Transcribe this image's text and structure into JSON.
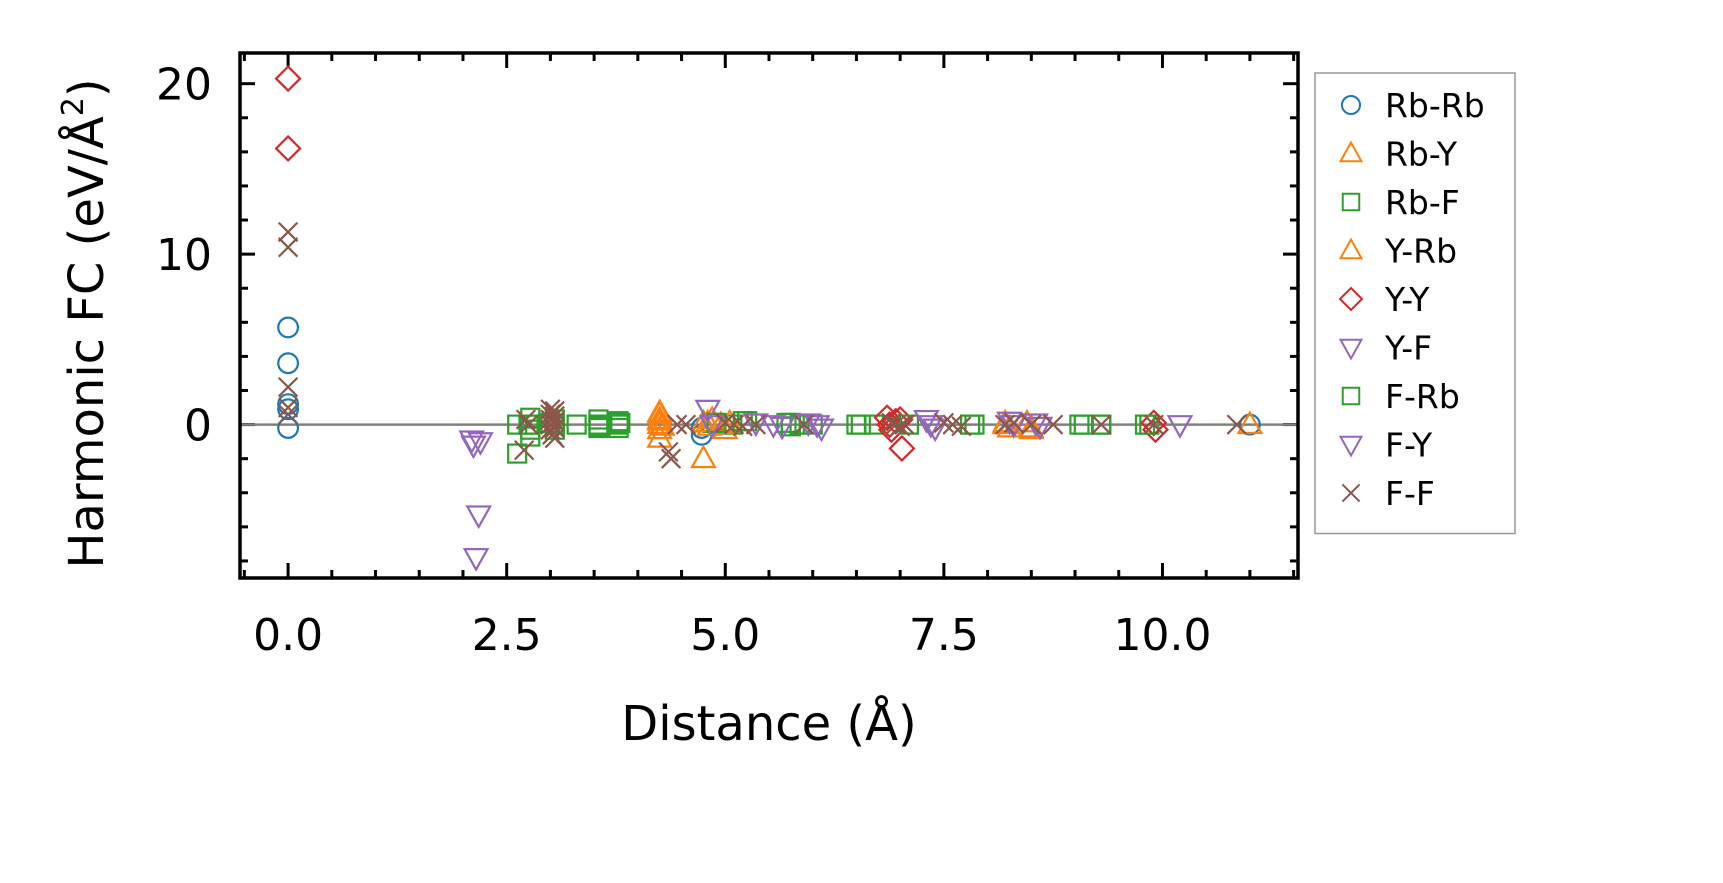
{
  "chart_data": {
    "type": "scatter",
    "xlabel": "Distance (Å)",
    "ylabel": "Harmonic FC (eV/Å²)",
    "ylabel_main": "Harmonic FC (eV/Å",
    "ylabel_sup": "2",
    "ylabel_end": ")",
    "xlim": [
      -0.55,
      11.55
    ],
    "ylim": [
      -9.0,
      21.8
    ],
    "x_ticks": [
      0.0,
      2.5,
      5.0,
      7.5,
      10.0
    ],
    "x_tick_labels": [
      "0.0",
      "2.5",
      "5.0",
      "7.5",
      "10.0"
    ],
    "y_ticks": [
      0,
      10,
      20
    ],
    "y_tick_labels": [
      "0",
      "10",
      "20"
    ],
    "zero_line": true,
    "legend_position": "outside-right",
    "series": [
      {
        "name": "Rb-Rb",
        "marker": "circle",
        "color": "#1f77b4",
        "x": [
          0,
          0,
          0,
          0,
          0,
          4.73,
          4.73,
          11.0
        ],
        "y": [
          5.7,
          3.6,
          1.2,
          0.9,
          -0.2,
          -0.6,
          -0.2,
          0.0
        ]
      },
      {
        "name": "Rb-Y",
        "marker": "triangle-up",
        "color": "#ff7f0e",
        "x": [
          4.25,
          4.25,
          4.25,
          4.25,
          4.25,
          4.75,
          4.75,
          8.2,
          8.5,
          11.0
        ],
        "y": [
          0.6,
          0.3,
          0.0,
          -0.3,
          -0.8,
          -2.0,
          0.1,
          0.0,
          -0.2,
          0.0
        ]
      },
      {
        "name": "Rb-F",
        "marker": "square",
        "color": "#2ca02c",
        "x": [
          2.62,
          2.62,
          2.77,
          2.77,
          2.77,
          2.77,
          3.05,
          3.05,
          3.05,
          3.55,
          3.55,
          3.55,
          3.78,
          3.78,
          3.78,
          4.85,
          5.08,
          5.25,
          5.75,
          5.75,
          5.85,
          6.5,
          6.7,
          7.8,
          9.05,
          9.3,
          9.85
        ],
        "y": [
          -1.7,
          0.0,
          0.4,
          0.0,
          -0.3,
          -0.7,
          0.3,
          0.0,
          -0.3,
          0.3,
          0.0,
          -0.2,
          0.2,
          0.0,
          -0.2,
          0.1,
          0.0,
          0.2,
          0.1,
          -0.1,
          0.0,
          0.0,
          0.0,
          0.0,
          0.0,
          0.0,
          0.0
        ]
      },
      {
        "name": "Y-Rb",
        "marker": "triangle-up",
        "color": "#ff7f0e",
        "x": [
          4.25,
          4.25,
          4.28,
          4.8,
          4.82,
          4.85,
          4.95,
          5.0,
          5.05,
          8.2,
          8.25,
          8.45,
          8.5
        ],
        "y": [
          0.7,
          0.2,
          -0.1,
          0.1,
          -0.1,
          0.3,
          0.0,
          -0.3,
          0.1,
          0.1,
          -0.2,
          0.1,
          -0.3
        ]
      },
      {
        "name": "Y-Y",
        "marker": "diamond",
        "color": "#d62728",
        "x": [
          0,
          0,
          6.85,
          6.88,
          6.9,
          6.95,
          7.0,
          7.02,
          9.9,
          9.92
        ],
        "y": [
          20.3,
          16.2,
          0.4,
          0.0,
          -0.3,
          0.2,
          0.3,
          -1.4,
          0.1,
          -0.3
        ]
      },
      {
        "name": "Y-F",
        "marker": "triangle-down",
        "color": "#9467bd",
        "x": [
          2.1,
          2.12,
          2.15,
          2.18,
          2.2
        ],
        "y": [
          -0.9,
          -1.2,
          -7.8,
          -5.3,
          -1.0
        ]
      },
      {
        "name": "F-Rb",
        "marker": "square",
        "color": "#2ca02c",
        "x": [
          2.75,
          3.0,
          3.3,
          3.55,
          3.8,
          4.9,
          5.2,
          5.7,
          6.0,
          6.55,
          7.1,
          7.85,
          9.1,
          9.3,
          9.8
        ],
        "y": [
          0.0,
          0.1,
          0.0,
          -0.1,
          0.1,
          0.1,
          0.2,
          0.1,
          0.0,
          0.0,
          0.0,
          0.0,
          0.0,
          0.0,
          0.0
        ]
      },
      {
        "name": "F-Y",
        "marker": "triangle-down",
        "color": "#9467bd",
        "x": [
          4.8,
          4.85,
          5.35,
          5.55,
          5.65,
          5.95,
          6.05,
          6.1,
          7.3,
          7.35,
          7.4,
          8.25,
          8.3,
          8.55,
          8.6,
          10.2
        ],
        "y": [
          0.9,
          0.0,
          0.1,
          0.0,
          -0.1,
          0.1,
          0.0,
          -0.2,
          0.3,
          0.0,
          -0.2,
          0.2,
          0.0,
          0.1,
          -0.1,
          0.0
        ]
      },
      {
        "name": "F-F",
        "marker": "x",
        "color": "#8c564b",
        "x": [
          0,
          0,
          0,
          0,
          0,
          2.7,
          2.72,
          2.75,
          3.0,
          3.0,
          3.0,
          3.0,
          3.0,
          3.02,
          3.05,
          3.05,
          3.05,
          3.05,
          3.05,
          4.35,
          4.38,
          4.45,
          4.55,
          5.0,
          5.1,
          5.2,
          5.35,
          5.9,
          6.9,
          6.95,
          7.0,
          7.05,
          7.5,
          7.6,
          7.7,
          8.2,
          8.3,
          8.5,
          8.75,
          9.3,
          9.9,
          10.85
        ],
        "y": [
          11.3,
          10.4,
          2.2,
          1.0,
          0.6,
          -1.5,
          0.3,
          0.0,
          0.9,
          0.6,
          0.3,
          0.0,
          -0.3,
          -0.6,
          0.8,
          0.5,
          0.2,
          -0.2,
          -0.8,
          -1.6,
          -2.0,
          0.0,
          0.0,
          0.1,
          0.0,
          -0.1,
          0.0,
          0.0,
          0.1,
          0.0,
          -0.1,
          0.0,
          0.1,
          0.0,
          -0.1,
          0.0,
          0.1,
          0.0,
          0.0,
          0.0,
          0.0,
          0.0
        ]
      }
    ]
  }
}
